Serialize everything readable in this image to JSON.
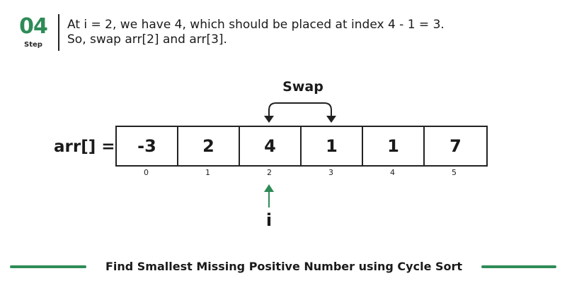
{
  "step": {
    "number": "04",
    "label": "Step"
  },
  "description": {
    "line1": "At i = 2, we have 4, which should be placed at index 4 - 1 = 3.",
    "line2": "So, swap arr[2] and arr[3]."
  },
  "swap_label": "Swap",
  "array": {
    "label": "arr[] =",
    "values": [
      "-3",
      "2",
      "4",
      "1",
      "1",
      "7"
    ],
    "indices": [
      "0",
      "1",
      "2",
      "3",
      "4",
      "5"
    ],
    "swap_indices": [
      2,
      3
    ]
  },
  "pointer": {
    "label": "i",
    "index": 2
  },
  "footer": {
    "title": "Find Smallest Missing Positive Number using Cycle Sort"
  },
  "colors": {
    "accent": "#2e8b57",
    "text": "#1a1a1a",
    "border": "#222222"
  }
}
